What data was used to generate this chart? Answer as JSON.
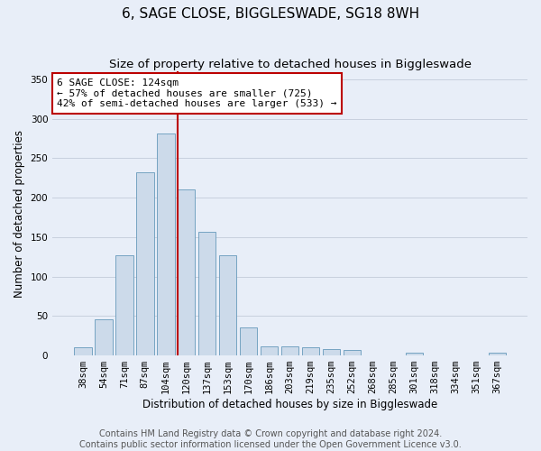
{
  "title": "6, SAGE CLOSE, BIGGLESWADE, SG18 8WH",
  "subtitle": "Size of property relative to detached houses in Biggleswade",
  "xlabel": "Distribution of detached houses by size in Biggleswade",
  "ylabel": "Number of detached properties",
  "footnote1": "Contains HM Land Registry data © Crown copyright and database right 2024.",
  "footnote2": "Contains public sector information licensed under the Open Government Licence v3.0.",
  "bin_labels": [
    "38sqm",
    "54sqm",
    "71sqm",
    "87sqm",
    "104sqm",
    "120sqm",
    "137sqm",
    "153sqm",
    "170sqm",
    "186sqm",
    "203sqm",
    "219sqm",
    "235sqm",
    "252sqm",
    "268sqm",
    "285sqm",
    "301sqm",
    "318sqm",
    "334sqm",
    "351sqm",
    "367sqm"
  ],
  "bar_heights": [
    10,
    46,
    127,
    232,
    281,
    210,
    157,
    127,
    35,
    11,
    11,
    10,
    8,
    7,
    0,
    0,
    3,
    0,
    0,
    0,
    3
  ],
  "bar_color": "#ccdaea",
  "bar_edge_color": "#6699bb",
  "vline_color": "#bb0000",
  "vline_bin_index": 5,
  "annotation_text": "6 SAGE CLOSE: 124sqm\n← 57% of detached houses are smaller (725)\n42% of semi-detached houses are larger (533) →",
  "annotation_box_color": "white",
  "annotation_box_edge_color": "#bb0000",
  "ylim": [
    0,
    360
  ],
  "yticks": [
    0,
    50,
    100,
    150,
    200,
    250,
    300,
    350
  ],
  "background_color": "#e8eef8",
  "grid_color": "#c8d0de",
  "title_fontsize": 11,
  "subtitle_fontsize": 9.5,
  "axis_label_fontsize": 8.5,
  "tick_fontsize": 7.5,
  "annotation_fontsize": 8,
  "footnote_fontsize": 7
}
